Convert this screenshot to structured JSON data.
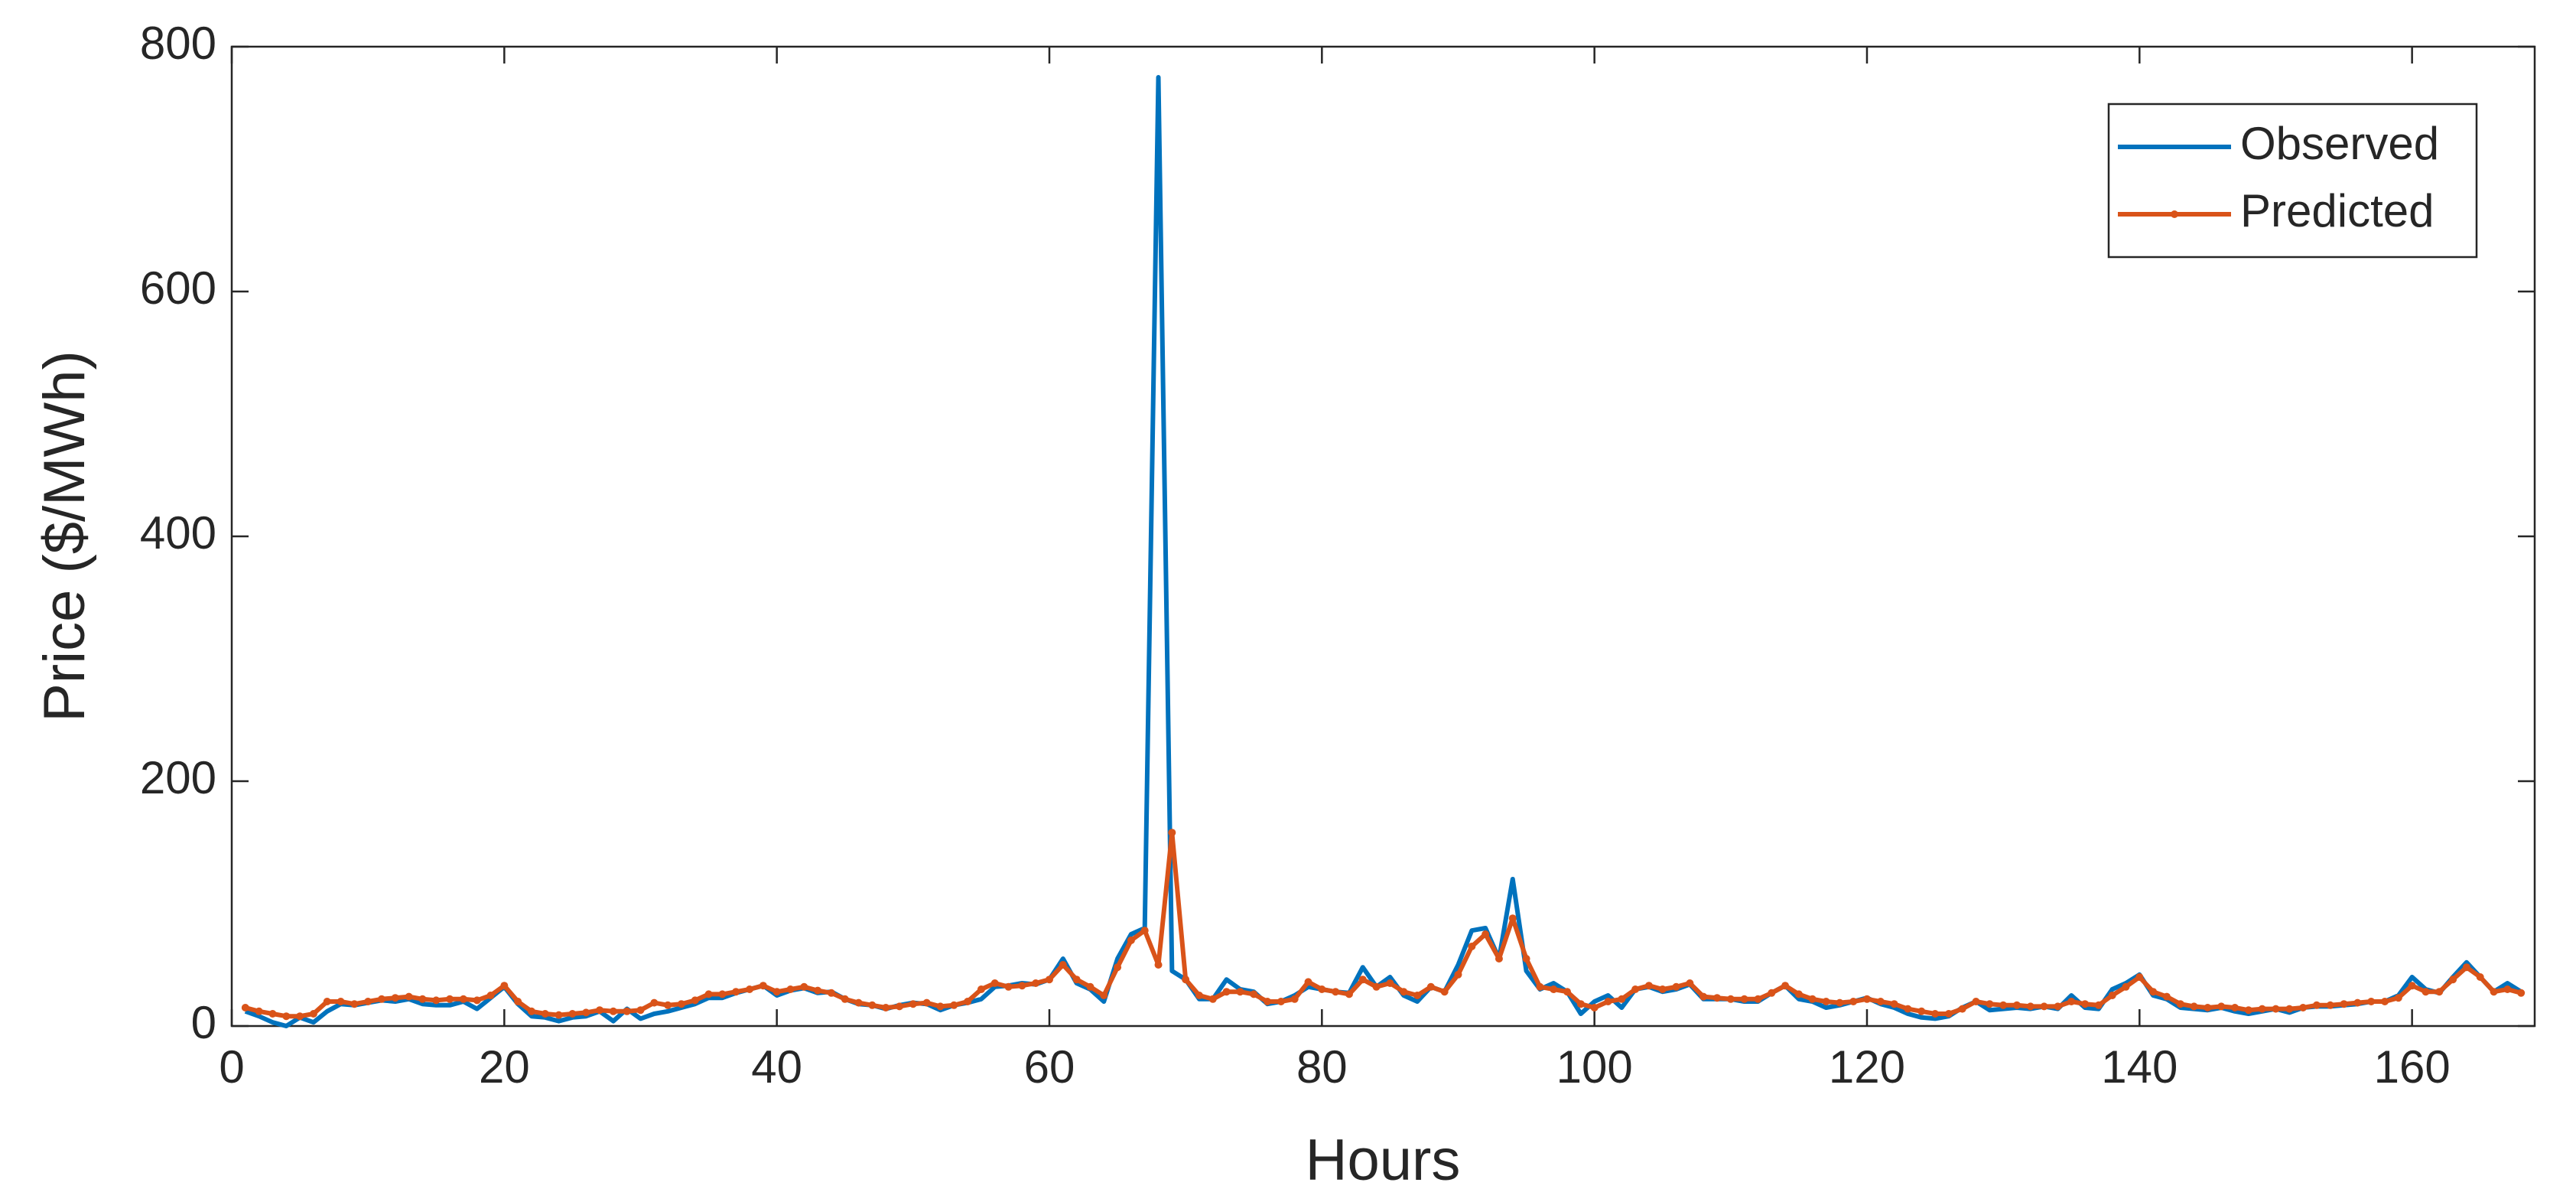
{
  "chart_data": {
    "type": "line",
    "xlabel": "Hours",
    "ylabel": "Price ($/MWh)",
    "xlim": [
      0,
      169
    ],
    "ylim": [
      0,
      800
    ],
    "xticks": [
      0,
      20,
      40,
      60,
      80,
      100,
      120,
      140,
      160
    ],
    "yticks": [
      0,
      200,
      400,
      600,
      800
    ],
    "legend": "northeast",
    "box": true,
    "x": [
      1,
      2,
      3,
      4,
      5,
      6,
      7,
      8,
      9,
      10,
      11,
      12,
      13,
      14,
      15,
      16,
      17,
      18,
      19,
      20,
      21,
      22,
      23,
      24,
      25,
      26,
      27,
      28,
      29,
      30,
      31,
      32,
      33,
      34,
      35,
      36,
      37,
      38,
      39,
      40,
      41,
      42,
      43,
      44,
      45,
      46,
      47,
      48,
      49,
      50,
      51,
      52,
      53,
      54,
      55,
      56,
      57,
      58,
      59,
      60,
      61,
      62,
      63,
      64,
      65,
      66,
      67,
      68,
      69,
      70,
      71,
      72,
      73,
      74,
      75,
      76,
      77,
      78,
      79,
      80,
      81,
      82,
      83,
      84,
      85,
      86,
      87,
      88,
      89,
      90,
      91,
      92,
      93,
      94,
      95,
      96,
      97,
      98,
      99,
      100,
      101,
      102,
      103,
      104,
      105,
      106,
      107,
      108,
      109,
      110,
      111,
      112,
      113,
      114,
      115,
      116,
      117,
      118,
      119,
      120,
      121,
      122,
      123,
      124,
      125,
      126,
      127,
      128,
      129,
      130,
      131,
      132,
      133,
      134,
      135,
      136,
      137,
      138,
      139,
      140,
      141,
      142,
      143,
      144,
      145,
      146,
      147,
      148,
      149,
      150,
      151,
      152,
      153,
      154,
      155,
      156,
      157,
      158,
      159,
      160,
      161,
      162,
      163,
      164,
      165,
      166,
      167,
      168
    ],
    "series": [
      {
        "name": "Observed",
        "color": "#0072BD",
        "marker": false,
        "values": [
          12,
          8,
          3,
          0,
          7,
          3,
          12,
          18,
          17,
          19,
          21,
          20,
          22,
          18,
          17,
          17,
          20,
          14,
          23,
          32,
          18,
          8,
          7,
          4,
          7,
          8,
          12,
          4,
          14,
          6,
          10,
          12,
          15,
          18,
          23,
          23,
          27,
          30,
          33,
          25,
          29,
          31,
          27,
          28,
          22,
          18,
          17,
          14,
          17,
          19,
          18,
          13,
          17,
          19,
          22,
          32,
          33,
          35,
          34,
          38,
          55,
          35,
          30,
          20,
          55,
          75,
          80,
          775,
          45,
          38,
          22,
          22,
          38,
          30,
          28,
          18,
          20,
          25,
          32,
          30,
          28,
          27,
          48,
          32,
          40,
          25,
          20,
          32,
          28,
          50,
          78,
          80,
          55,
          120,
          45,
          30,
          35,
          28,
          10,
          20,
          25,
          15,
          30,
          32,
          28,
          30,
          34,
          22,
          22,
          22,
          20,
          20,
          27,
          33,
          22,
          20,
          15,
          17,
          20,
          23,
          18,
          15,
          10,
          7,
          6,
          8,
          15,
          20,
          13,
          14,
          15,
          14,
          16,
          14,
          25,
          15,
          14,
          30,
          35,
          42,
          25,
          22,
          15,
          14,
          13,
          15,
          12,
          10,
          12,
          14,
          11,
          15,
          16,
          16,
          17,
          18,
          20,
          20,
          25,
          40,
          30,
          27,
          40,
          52,
          40,
          28,
          35,
          28
        ]
      },
      {
        "name": "Predicted",
        "color": "#D95319",
        "marker": true,
        "values": [
          15,
          12,
          10,
          8,
          8,
          10,
          20,
          20,
          18,
          20,
          22,
          23,
          24,
          22,
          21,
          22,
          22,
          21,
          25,
          33,
          20,
          12,
          10,
          9,
          10,
          11,
          13,
          12,
          12,
          13,
          19,
          17,
          18,
          21,
          26,
          26,
          28,
          30,
          33,
          28,
          30,
          32,
          29,
          27,
          22,
          19,
          17,
          15,
          16,
          18,
          19,
          16,
          17,
          20,
          30,
          35,
          32,
          33,
          35,
          38,
          50,
          38,
          32,
          25,
          48,
          70,
          78,
          50,
          158,
          38,
          25,
          22,
          28,
          28,
          26,
          20,
          20,
          22,
          36,
          30,
          28,
          26,
          38,
          32,
          35,
          28,
          25,
          32,
          28,
          42,
          65,
          75,
          55,
          88,
          55,
          32,
          30,
          28,
          18,
          15,
          20,
          22,
          30,
          33,
          30,
          32,
          35,
          24,
          23,
          22,
          22,
          22,
          27,
          33,
          26,
          22,
          20,
          19,
          20,
          22,
          20,
          18,
          14,
          12,
          10,
          10,
          14,
          20,
          18,
          17,
          17,
          16,
          16,
          16,
          20,
          18,
          17,
          25,
          32,
          40,
          28,
          24,
          18,
          16,
          15,
          16,
          15,
          13,
          14,
          14,
          14,
          15,
          17,
          17,
          18,
          19,
          20,
          20,
          23,
          33,
          28,
          28,
          38,
          48,
          40,
          28,
          30,
          27
        ]
      }
    ]
  }
}
